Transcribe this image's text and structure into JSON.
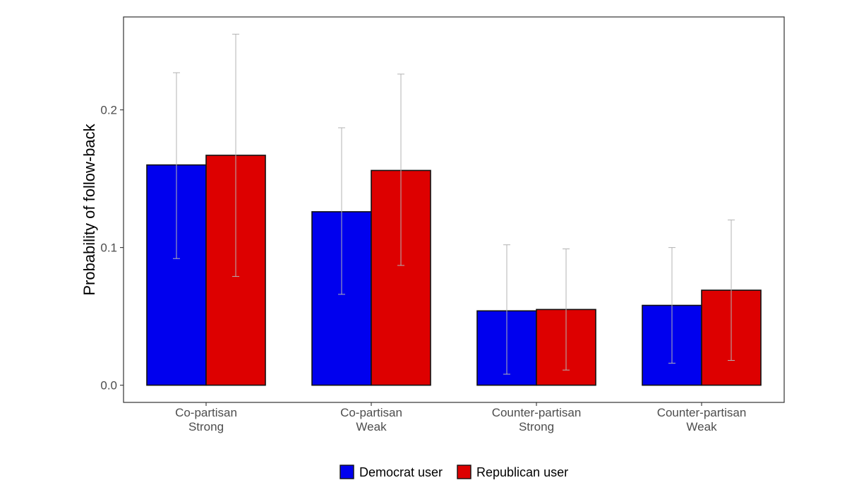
{
  "chart_data": {
    "type": "bar",
    "categories": [
      [
        "Co-partisan",
        "Strong"
      ],
      [
        "Co-partisan",
        "Weak"
      ],
      [
        "Counter-partisan",
        "Strong"
      ],
      [
        "Counter-partisan",
        "Weak"
      ]
    ],
    "series": [
      {
        "name": "Democrat user",
        "color": "#0000ee",
        "values": [
          0.16,
          0.126,
          0.054,
          0.058
        ],
        "error_low": [
          0.092,
          0.066,
          0.008,
          0.016
        ],
        "error_high": [
          0.227,
          0.187,
          0.102,
          0.1
        ]
      },
      {
        "name": "Republican user",
        "color": "#dd0000",
        "values": [
          0.167,
          0.156,
          0.055,
          0.069
        ],
        "error_low": [
          0.079,
          0.087,
          0.011,
          0.018
        ],
        "error_high": [
          0.255,
          0.226,
          0.099,
          0.12
        ]
      }
    ],
    "ylabel": "Probability of follow-back",
    "xlabel": "",
    "ylim": [
      -0.0125,
      0.2675
    ],
    "yticks": [
      0.0,
      0.1,
      0.2
    ],
    "ytick_labels": [
      "0.0",
      "0.1",
      "0.2"
    ],
    "grid": false,
    "legend_position": "bottom"
  }
}
